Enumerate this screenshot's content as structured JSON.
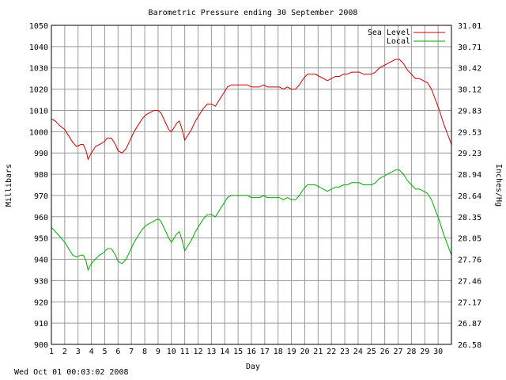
{
  "chart_data": {
    "type": "line",
    "title": "Barometric Pressure ending 30 September 2008",
    "xlabel": "Day",
    "ylabel": "Millibars",
    "y2label": "Inches/Hg",
    "xlim": [
      1,
      31
    ],
    "ylim": [
      900,
      1050
    ],
    "x_ticks": [
      "1",
      "2",
      "3",
      "4",
      "5",
      "6",
      "7",
      "8",
      "9",
      "10",
      "11",
      "12",
      "13",
      "14",
      "15",
      "16",
      "17",
      "18",
      "19",
      "20",
      "21",
      "22",
      "23",
      "24",
      "25",
      "26",
      "27",
      "28",
      "29",
      "30"
    ],
    "y_ticks": [
      900,
      910,
      920,
      930,
      940,
      950,
      960,
      970,
      980,
      990,
      1000,
      1010,
      1020,
      1030,
      1040,
      1050
    ],
    "y2_ticks": [
      "26.58",
      "26.87",
      "27.17",
      "27.46",
      "27.76",
      "28.05",
      "28.35",
      "28.64",
      "28.94",
      "29.23",
      "29.53",
      "29.83",
      "30.12",
      "30.42",
      "30.71",
      "31.01"
    ],
    "grid": true,
    "legend_position": "top-right",
    "series": [
      {
        "name": "Sea Level",
        "color": "#cc0000",
        "x": [
          1.0,
          1.3,
          1.6,
          2.0,
          2.3,
          2.6,
          2.9,
          3.2,
          3.4,
          3.6,
          3.75,
          4.0,
          4.3,
          4.6,
          4.9,
          5.2,
          5.5,
          5.8,
          6.0,
          6.3,
          6.6,
          6.9,
          7.2,
          7.5,
          7.8,
          8.1,
          8.4,
          8.7,
          9.0,
          9.2,
          9.5,
          9.8,
          10.0,
          10.2,
          10.4,
          10.6,
          10.8,
          11.0,
          11.2,
          11.5,
          11.8,
          12.1,
          12.4,
          12.7,
          13.0,
          13.3,
          13.6,
          13.9,
          14.2,
          14.5,
          14.8,
          15.1,
          15.4,
          15.7,
          16.0,
          16.3,
          16.6,
          16.9,
          17.2,
          17.5,
          17.8,
          18.1,
          18.4,
          18.7,
          19.0,
          19.3,
          19.6,
          19.9,
          20.2,
          20.5,
          20.8,
          21.1,
          21.4,
          21.7,
          22.0,
          22.3,
          22.6,
          22.9,
          23.2,
          23.5,
          23.8,
          24.1,
          24.4,
          24.7,
          25.0,
          25.3,
          25.6,
          25.9,
          26.2,
          26.5,
          26.8,
          27.1,
          27.4,
          27.7,
          28.0,
          28.3,
          28.6,
          28.9,
          29.2,
          29.5,
          29.8,
          30.1,
          30.4,
          30.7,
          31.0
        ],
        "y": [
          1006,
          1005,
          1003,
          1001,
          998,
          995,
          993,
          994,
          994,
          991,
          987,
          990,
          993,
          994,
          995,
          997,
          997,
          994,
          991,
          990,
          992,
          996,
          1000,
          1003,
          1006,
          1008,
          1009,
          1010,
          1010,
          1009,
          1005,
          1001,
          1000,
          1002,
          1004,
          1005,
          1001,
          996,
          998,
          1001,
          1005,
          1008,
          1011,
          1013,
          1013,
          1012,
          1015,
          1018,
          1021,
          1022,
          1022,
          1022,
          1022,
          1022,
          1021,
          1021,
          1021,
          1022,
          1021,
          1021,
          1021,
          1021,
          1020,
          1021,
          1020,
          1020,
          1022,
          1025,
          1027,
          1027,
          1027,
          1026,
          1025,
          1024,
          1025,
          1026,
          1026,
          1027,
          1027,
          1028,
          1028,
          1028,
          1027,
          1027,
          1027,
          1028,
          1030,
          1031,
          1032,
          1033,
          1034,
          1034,
          1032,
          1029,
          1027,
          1025,
          1025,
          1024,
          1023,
          1020,
          1015,
          1010,
          1004,
          999,
          994
        ]
      },
      {
        "name": "Local",
        "color": "#00aa00",
        "x": [
          1.0,
          1.3,
          1.6,
          2.0,
          2.3,
          2.6,
          2.9,
          3.2,
          3.4,
          3.6,
          3.75,
          4.0,
          4.3,
          4.6,
          4.9,
          5.2,
          5.5,
          5.8,
          6.0,
          6.3,
          6.6,
          6.9,
          7.2,
          7.5,
          7.8,
          8.1,
          8.4,
          8.7,
          9.0,
          9.2,
          9.5,
          9.8,
          10.0,
          10.2,
          10.4,
          10.6,
          10.8,
          11.0,
          11.2,
          11.5,
          11.8,
          12.1,
          12.4,
          12.7,
          13.0,
          13.3,
          13.6,
          13.9,
          14.2,
          14.5,
          14.8,
          15.1,
          15.4,
          15.7,
          16.0,
          16.3,
          16.6,
          16.9,
          17.2,
          17.5,
          17.8,
          18.1,
          18.4,
          18.7,
          19.0,
          19.3,
          19.6,
          19.9,
          20.2,
          20.5,
          20.8,
          21.1,
          21.4,
          21.7,
          22.0,
          22.3,
          22.6,
          22.9,
          23.2,
          23.5,
          23.8,
          24.1,
          24.4,
          24.7,
          25.0,
          25.3,
          25.6,
          25.9,
          26.2,
          26.5,
          26.8,
          27.1,
          27.4,
          27.7,
          28.0,
          28.3,
          28.6,
          28.9,
          29.2,
          29.5,
          29.8,
          30.1,
          30.4,
          30.7,
          31.0
        ],
        "y": [
          955,
          953,
          951,
          948,
          945,
          942,
          941,
          942,
          942,
          939,
          935,
          938,
          940,
          942,
          943,
          945,
          945,
          942,
          939,
          938,
          940,
          944,
          948,
          951,
          954,
          956,
          957,
          958,
          959,
          958,
          954,
          950,
          948,
          950,
          952,
          953,
          949,
          944,
          946,
          949,
          953,
          956,
          959,
          961,
          961,
          960,
          963,
          966,
          969,
          970,
          970,
          970,
          970,
          970,
          969,
          969,
          969,
          970,
          969,
          969,
          969,
          969,
          968,
          969,
          968,
          968,
          970,
          973,
          975,
          975,
          975,
          974,
          973,
          972,
          973,
          974,
          974,
          975,
          975,
          976,
          976,
          976,
          975,
          975,
          975,
          976,
          978,
          979,
          980,
          981,
          982,
          982,
          980,
          977,
          975,
          973,
          973,
          972,
          971,
          968,
          963,
          958,
          952,
          947,
          942
        ]
      }
    ]
  },
  "timestamp": "Wed Oct 01 00:03:02 2008"
}
